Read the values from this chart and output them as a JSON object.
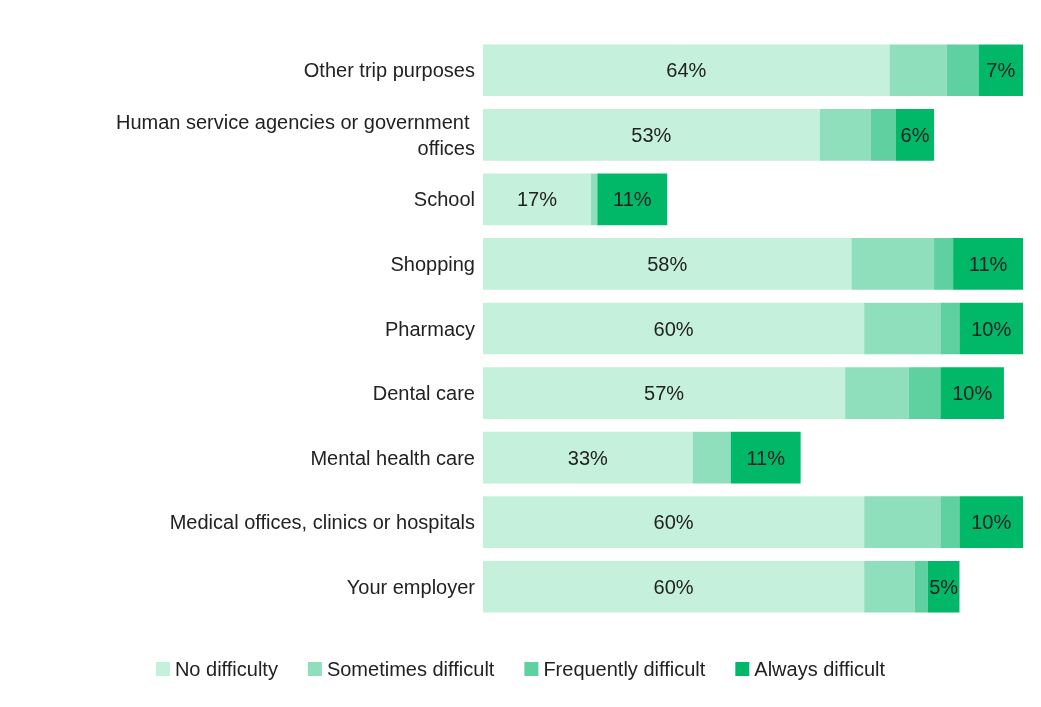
{
  "chart_data": {
    "type": "bar",
    "orientation": "horizontal",
    "stacked": true,
    "legend": "bottom",
    "categories": [
      "Other trip purposes",
      "Human service agencies or government offices",
      "School",
      "Shopping",
      "Pharmacy",
      "Dental care",
      "Mental health care",
      "Medical offices, clinics or hospitals",
      "Your employer"
    ],
    "series": [
      {
        "name": "No difficulty",
        "color": "#c4f0dc",
        "values": [
          64,
          53,
          17,
          58,
          60,
          57,
          33,
          60,
          60
        ],
        "value_labels": [
          "64%",
          "53%",
          "17%",
          "58%",
          "60%",
          "57%",
          "33%",
          "60%",
          "60%"
        ]
      },
      {
        "name": "Sometimes difficult",
        "color": "#8fdfbd",
        "values": [
          9,
          8,
          1,
          13,
          12,
          10,
          6,
          12,
          8
        ],
        "value_labels": [
          null,
          null,
          null,
          null,
          null,
          null,
          null,
          null,
          null
        ]
      },
      {
        "name": "Frequently difficult",
        "color": "#5fd0a0",
        "values": [
          5,
          4,
          0,
          3,
          3,
          5,
          0,
          3,
          2
        ],
        "value_labels": [
          null,
          null,
          null,
          null,
          null,
          null,
          null,
          null,
          null
        ]
      },
      {
        "name": "Always difficult",
        "color": "#00b868",
        "values": [
          7,
          6,
          11,
          11,
          10,
          10,
          11,
          10,
          5
        ],
        "value_labels": [
          "7%",
          "6%",
          "11%",
          "11%",
          "10%",
          "10%",
          "11%",
          "10%",
          "5%"
        ]
      }
    ]
  }
}
